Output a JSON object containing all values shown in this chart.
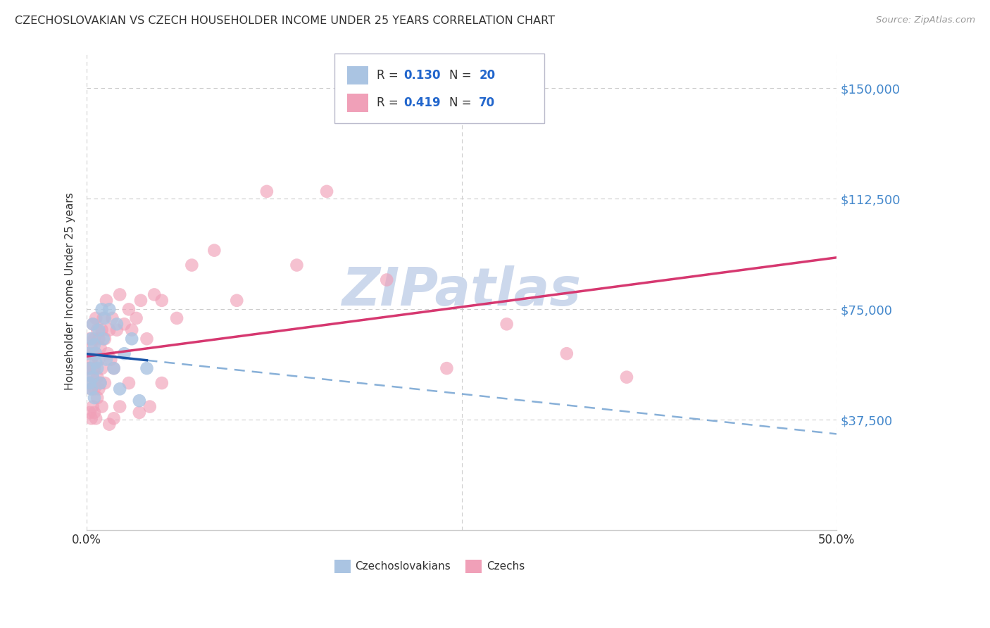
{
  "title": "CZECHOSLOVAKIAN VS CZECH HOUSEHOLDER INCOME UNDER 25 YEARS CORRELATION CHART",
  "source": "Source: ZipAtlas.com",
  "ylabel": "Householder Income Under 25 years",
  "ytick_labels": [
    "$37,500",
    "$75,000",
    "$112,500",
    "$150,000"
  ],
  "ytick_values": [
    37500,
    75000,
    112500,
    150000
  ],
  "ymin": 0,
  "ymax": 162500,
  "xmin": 0.0,
  "xmax": 0.5,
  "blue_color": "#aac4e2",
  "pink_color": "#f0a0b8",
  "blue_line_color": "#1a55a8",
  "pink_line_color": "#d63870",
  "blue_dash_color": "#88b0d8",
  "text_color": "#333333",
  "axis_color": "#4488cc",
  "grid_color": "#cccccc",
  "watermark_color": "#ccd8ec",
  "watermark": "ZIPatlas",
  "legend_color": "#2266cc",
  "czechoslovakian_x": [
    0.001,
    0.002,
    0.002,
    0.003,
    0.003,
    0.004,
    0.004,
    0.005,
    0.005,
    0.006,
    0.006,
    0.007,
    0.008,
    0.009,
    0.01,
    0.011,
    0.012,
    0.013,
    0.015,
    0.018,
    0.02,
    0.022,
    0.025,
    0.03,
    0.035,
    0.04
  ],
  "czechoslovakian_y": [
    60000,
    55000,
    50000,
    65000,
    48000,
    70000,
    52000,
    63000,
    45000,
    57000,
    60000,
    55000,
    68000,
    50000,
    75000,
    65000,
    72000,
    58000,
    75000,
    55000,
    70000,
    48000,
    60000,
    65000,
    44000,
    55000
  ],
  "czech_x": [
    0.001,
    0.001,
    0.002,
    0.002,
    0.002,
    0.003,
    0.003,
    0.003,
    0.004,
    0.004,
    0.004,
    0.005,
    0.005,
    0.005,
    0.006,
    0.006,
    0.007,
    0.007,
    0.008,
    0.008,
    0.009,
    0.009,
    0.01,
    0.01,
    0.011,
    0.012,
    0.013,
    0.014,
    0.015,
    0.016,
    0.017,
    0.018,
    0.02,
    0.022,
    0.025,
    0.028,
    0.03,
    0.033,
    0.036,
    0.04,
    0.045,
    0.05,
    0.06,
    0.07,
    0.085,
    0.1,
    0.12,
    0.14,
    0.16,
    0.2,
    0.24,
    0.28,
    0.32,
    0.36,
    0.002,
    0.003,
    0.004,
    0.005,
    0.006,
    0.007,
    0.008,
    0.01,
    0.012,
    0.015,
    0.018,
    0.022,
    0.028,
    0.035,
    0.042,
    0.05
  ],
  "czech_y": [
    60000,
    55000,
    65000,
    55000,
    50000,
    62000,
    58000,
    48000,
    70000,
    52000,
    60000,
    65000,
    55000,
    48000,
    72000,
    60000,
    68000,
    52000,
    58000,
    65000,
    62000,
    50000,
    68000,
    55000,
    72000,
    65000,
    78000,
    60000,
    68000,
    58000,
    72000,
    55000,
    68000,
    80000,
    70000,
    75000,
    68000,
    72000,
    78000,
    65000,
    80000,
    78000,
    72000,
    90000,
    95000,
    78000,
    115000,
    90000,
    115000,
    85000,
    55000,
    70000,
    60000,
    52000,
    40000,
    38000,
    42000,
    40000,
    38000,
    45000,
    48000,
    42000,
    50000,
    36000,
    38000,
    42000,
    50000,
    40000,
    42000,
    50000
  ]
}
